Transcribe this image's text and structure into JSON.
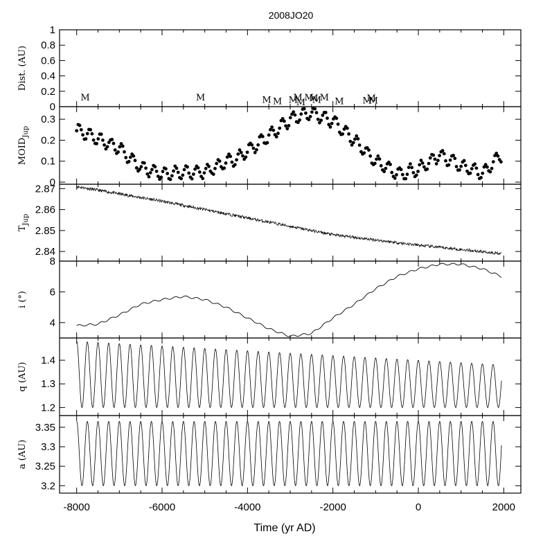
{
  "chart_data": {
    "type": "line",
    "title": "2008JO20",
    "xlabel": "Time (yr AD)",
    "xlim": [
      -8400,
      2400
    ],
    "xticks": [
      -8000,
      -6000,
      -4000,
      -2000,
      0,
      2000
    ],
    "xtick_labels": [
      "-8000",
      "-6000",
      "-4000",
      "-2000",
      "0",
      "2000"
    ],
    "t_range": [
      -8000,
      1950
    ],
    "panels": [
      {
        "id": "dist",
        "ylabel": "Dist. (AU)",
        "ylim": [
          0,
          1
        ],
        "yticks": [
          0,
          0.2,
          0.4,
          0.6,
          0.8,
          1
        ],
        "ytick_labels": [
          "0",
          "0.2",
          "0.4",
          "0.6",
          "0.8",
          "1"
        ],
        "type": "annotations",
        "marker_label": "M",
        "markers": [
          {
            "x": -7800,
            "y": 0.08
          },
          {
            "x": -5100,
            "y": 0.08
          },
          {
            "x": -3550,
            "y": 0.05
          },
          {
            "x": -3300,
            "y": 0.03
          },
          {
            "x": -2930,
            "y": 0.05
          },
          {
            "x": -2820,
            "y": 0.08
          },
          {
            "x": -2750,
            "y": 0.02
          },
          {
            "x": -2560,
            "y": 0.08
          },
          {
            "x": -2450,
            "y": 0.07
          },
          {
            "x": -2380,
            "y": 0.05
          },
          {
            "x": -2200,
            "y": 0.08
          },
          {
            "x": -1850,
            "y": 0.03
          },
          {
            "x": -1200,
            "y": 0.04
          },
          {
            "x": -1100,
            "y": 0.07
          },
          {
            "x": -1050,
            "y": 0.04
          }
        ]
      },
      {
        "id": "moid",
        "ylabel": "MOID",
        "ylabel_sub": "Jup",
        "ylim": [
          -0.01,
          0.36
        ],
        "yticks": [
          0,
          0.1,
          0.2,
          0.3
        ],
        "ytick_labels": [
          "0",
          "0.1",
          "0.2",
          "0.3"
        ],
        "type": "scatter",
        "trend": [
          [
            -8000,
            0.25
          ],
          [
            -7000,
            0.16
          ],
          [
            -6500,
            0.07
          ],
          [
            -6000,
            0.04
          ],
          [
            -5000,
            0.05
          ],
          [
            -4200,
            0.12
          ],
          [
            -3500,
            0.22
          ],
          [
            -3000,
            0.3
          ],
          [
            -2500,
            0.33
          ],
          [
            -2000,
            0.29
          ],
          [
            -1500,
            0.2
          ],
          [
            -1000,
            0.1
          ],
          [
            -500,
            0.04
          ],
          [
            0,
            0.06
          ],
          [
            500,
            0.13
          ],
          [
            1000,
            0.08
          ],
          [
            1500,
            0.04
          ],
          [
            1950,
            0.13
          ]
        ],
        "oscillation_amplitude": 0.03,
        "oscillation_period_yr": 250
      },
      {
        "id": "tjup",
        "ylabel": "T",
        "ylabel_sub": "Jup",
        "ylim": [
          2.8354,
          2.8721
        ],
        "yticks": [
          2.84,
          2.85,
          2.86,
          2.87
        ],
        "ytick_labels": [
          "2.84",
          "2.85",
          "2.86",
          "2.87"
        ],
        "type": "line",
        "trend": [
          [
            -8000,
            2.871
          ],
          [
            -6000,
            2.864
          ],
          [
            -4000,
            2.856
          ],
          [
            -2000,
            2.848
          ],
          [
            0,
            2.843
          ],
          [
            1950,
            2.839
          ]
        ],
        "noise_amplitude": 0.0007
      },
      {
        "id": "incl",
        "ylabel": "i (°)",
        "ylim": [
          3,
          8
        ],
        "yticks": [
          4,
          6,
          8
        ],
        "ytick_labels": [
          "4",
          "6",
          "8"
        ],
        "type": "line",
        "trend": [
          [
            -8000,
            3.8
          ],
          [
            -7500,
            3.9
          ],
          [
            -7000,
            4.5
          ],
          [
            -6500,
            5.2
          ],
          [
            -6000,
            5.5
          ],
          [
            -5500,
            5.7
          ],
          [
            -5000,
            5.5
          ],
          [
            -4500,
            5.0
          ],
          [
            -4000,
            4.3
          ],
          [
            -3500,
            3.6
          ],
          [
            -3000,
            3.1
          ],
          [
            -2500,
            3.3
          ],
          [
            -2000,
            4.3
          ],
          [
            -1500,
            5.2
          ],
          [
            -1000,
            6.2
          ],
          [
            -500,
            7.0
          ],
          [
            0,
            7.5
          ],
          [
            500,
            7.8
          ],
          [
            1000,
            7.8
          ],
          [
            1500,
            7.5
          ],
          [
            1950,
            7.0
          ]
        ],
        "oscillation_amplitude": 0.06,
        "oscillation_period_yr": 250
      },
      {
        "id": "q",
        "ylabel": "q (AU)",
        "ylim": [
          1.166,
          1.494
        ],
        "yticks": [
          1.2,
          1.3,
          1.4
        ],
        "ytick_labels": [
          "1.2",
          "1.3",
          "1.4"
        ],
        "type": "line",
        "oscillation_period_yr": 250,
        "min_value": 1.2,
        "max_trend": [
          [
            -8000,
            1.48
          ],
          [
            1950,
            1.38
          ]
        ]
      },
      {
        "id": "a",
        "ylabel": "a (AU)",
        "ylim": [
          3.181,
          3.38
        ],
        "yticks": [
          3.2,
          3.25,
          3.3,
          3.35
        ],
        "ytick_labels": [
          "3.2",
          "3.25",
          "3.3",
          "3.35"
        ],
        "type": "line",
        "oscillation_period_yr": 250,
        "min_value": 3.2,
        "max_value": 3.365
      }
    ]
  }
}
